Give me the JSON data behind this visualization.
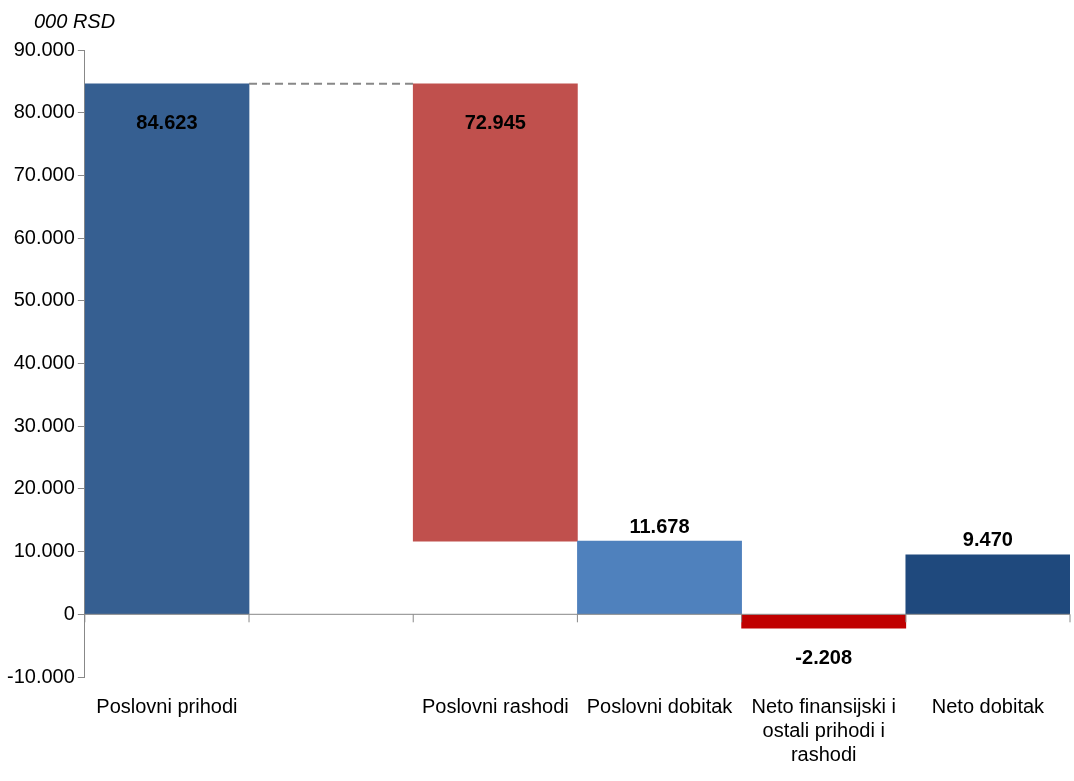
{
  "chart_data": {
    "type": "bar",
    "ylabel": "000 RSD",
    "categories": [
      "Poslovni prihodi",
      null,
      "Poslovni rashodi",
      "Poslovni dobitak",
      "Neto finansijski i ostali prihodi i rashodi",
      "Neto dobitak"
    ],
    "values": [
      84623,
      null,
      72945,
      11678,
      -2208,
      9470
    ],
    "base": [
      0,
      null,
      11678,
      0,
      0,
      0
    ],
    "colors": [
      "#365f91",
      "#ffffff",
      "#c0504d",
      "#4f81bd",
      "#c00000",
      "#1f497d"
    ],
    "value_labels": [
      "84.623",
      null,
      "72.945",
      "11.678",
      "-2.208",
      "9.470"
    ],
    "ylim": [
      -10000,
      90000
    ],
    "yticks": [
      {
        "value": -10000,
        "label": "-10.000"
      },
      {
        "value": 0,
        "label": "0"
      },
      {
        "value": 10000,
        "label": "10.000"
      },
      {
        "value": 20000,
        "label": "20.000"
      },
      {
        "value": 30000,
        "label": "30.000"
      },
      {
        "value": 40000,
        "label": "40.000"
      },
      {
        "value": 50000,
        "label": "50.000"
      },
      {
        "value": 60000,
        "label": "60.000"
      },
      {
        "value": 70000,
        "label": "70.000"
      },
      {
        "value": 80000,
        "label": "80.000"
      },
      {
        "value": 90000,
        "label": "90.000"
      }
    ],
    "legend": false
  }
}
